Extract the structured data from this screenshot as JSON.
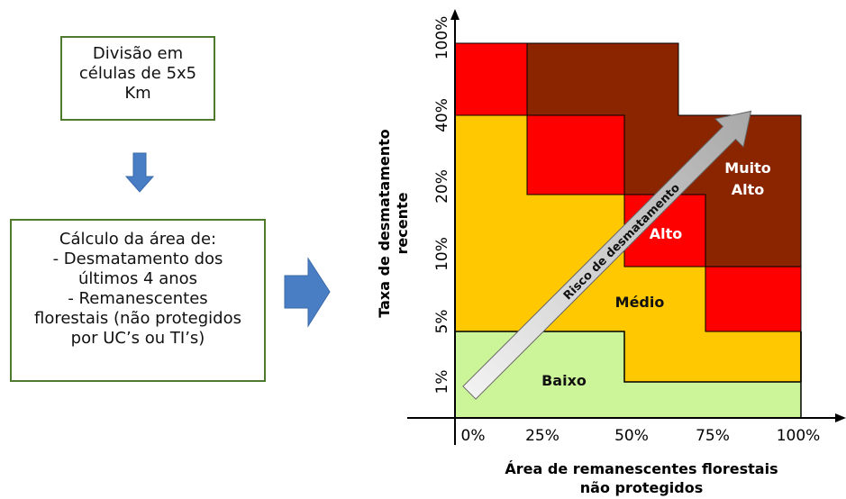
{
  "process": {
    "step1_lines": [
      "Divisão em",
      "células de 5x5",
      "Km"
    ],
    "step2_lines": [
      "Cálculo da área de:",
      "- Desmatamento dos",
      "últimos 4 anos",
      "- Remanescentes",
      "florestais (não protegidos",
      "por UC’s ou TI’s)"
    ]
  },
  "matrix": {
    "y_axis_title_lines": [
      "Taxa de desmatamento",
      "recente"
    ],
    "y_ticks": [
      "100%",
      "40%",
      "20%",
      "10%",
      "5%",
      "1%"
    ],
    "x_ticks": [
      "0%",
      "25%",
      "50%",
      "75%",
      "100%"
    ],
    "x_axis_title_lines": [
      "Área de remanescentes florestais",
      "não protegidos"
    ],
    "zones": {
      "baixo": "Baixo",
      "medio": "Médio",
      "alto": "Alto",
      "muito_alto_lines": [
        "Muito",
        "Alto"
      ]
    },
    "arrow_label": "Risco de desmatamento",
    "colors": {
      "baixo": "#ccf59a",
      "medio": "#ffc800",
      "alto": "#ff0000",
      "muito_alto": "#8b2500",
      "box_border": "#4e7a2d",
      "flow_arrow": "#4a7ec4",
      "risk_arrow": "#d9d9d9"
    }
  }
}
